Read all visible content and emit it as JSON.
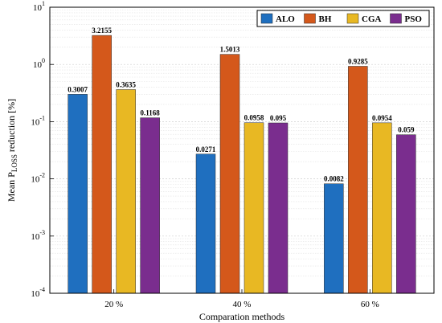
{
  "chart_data": {
    "type": "bar",
    "yscale": "log",
    "ylim": [
      0.0001,
      10
    ],
    "yticks": [
      {
        "base": "10",
        "exp": "1"
      },
      {
        "base": "10",
        "exp": "0"
      },
      {
        "base": "10",
        "exp": "-1"
      },
      {
        "base": "10",
        "exp": "-2"
      },
      {
        "base": "10",
        "exp": "-3"
      },
      {
        "base": "10",
        "exp": "-4"
      }
    ],
    "categories": [
      "20 %",
      "40 %",
      "60 %"
    ],
    "xlabel": "Comparation methods",
    "ylabel": {
      "main": "Mean P",
      "sub": "LOSS",
      "tail": " reduction [%]"
    },
    "grid": true,
    "legend_position": "top-right",
    "series": [
      {
        "name": "ALO",
        "color": "#1f6fbf",
        "values": [
          0.3007,
          0.0271,
          0.0082
        ],
        "labels": [
          "0.3007",
          "0.0271",
          "0.0082"
        ]
      },
      {
        "name": "BH",
        "color": "#d4581b",
        "values": [
          3.2155,
          1.5013,
          0.9285
        ],
        "labels": [
          "3.2155",
          "1.5013",
          "0.9285"
        ]
      },
      {
        "name": "CGA",
        "color": "#e8b823",
        "values": [
          0.3635,
          0.0958,
          0.0954
        ],
        "labels": [
          "0.3635",
          "0.0958",
          "0.0954"
        ]
      },
      {
        "name": "PSO",
        "color": "#7a2d8e",
        "values": [
          0.1168,
          0.095,
          0.059
        ],
        "labels": [
          "0.1168",
          "0.095",
          "0.059"
        ]
      }
    ]
  }
}
